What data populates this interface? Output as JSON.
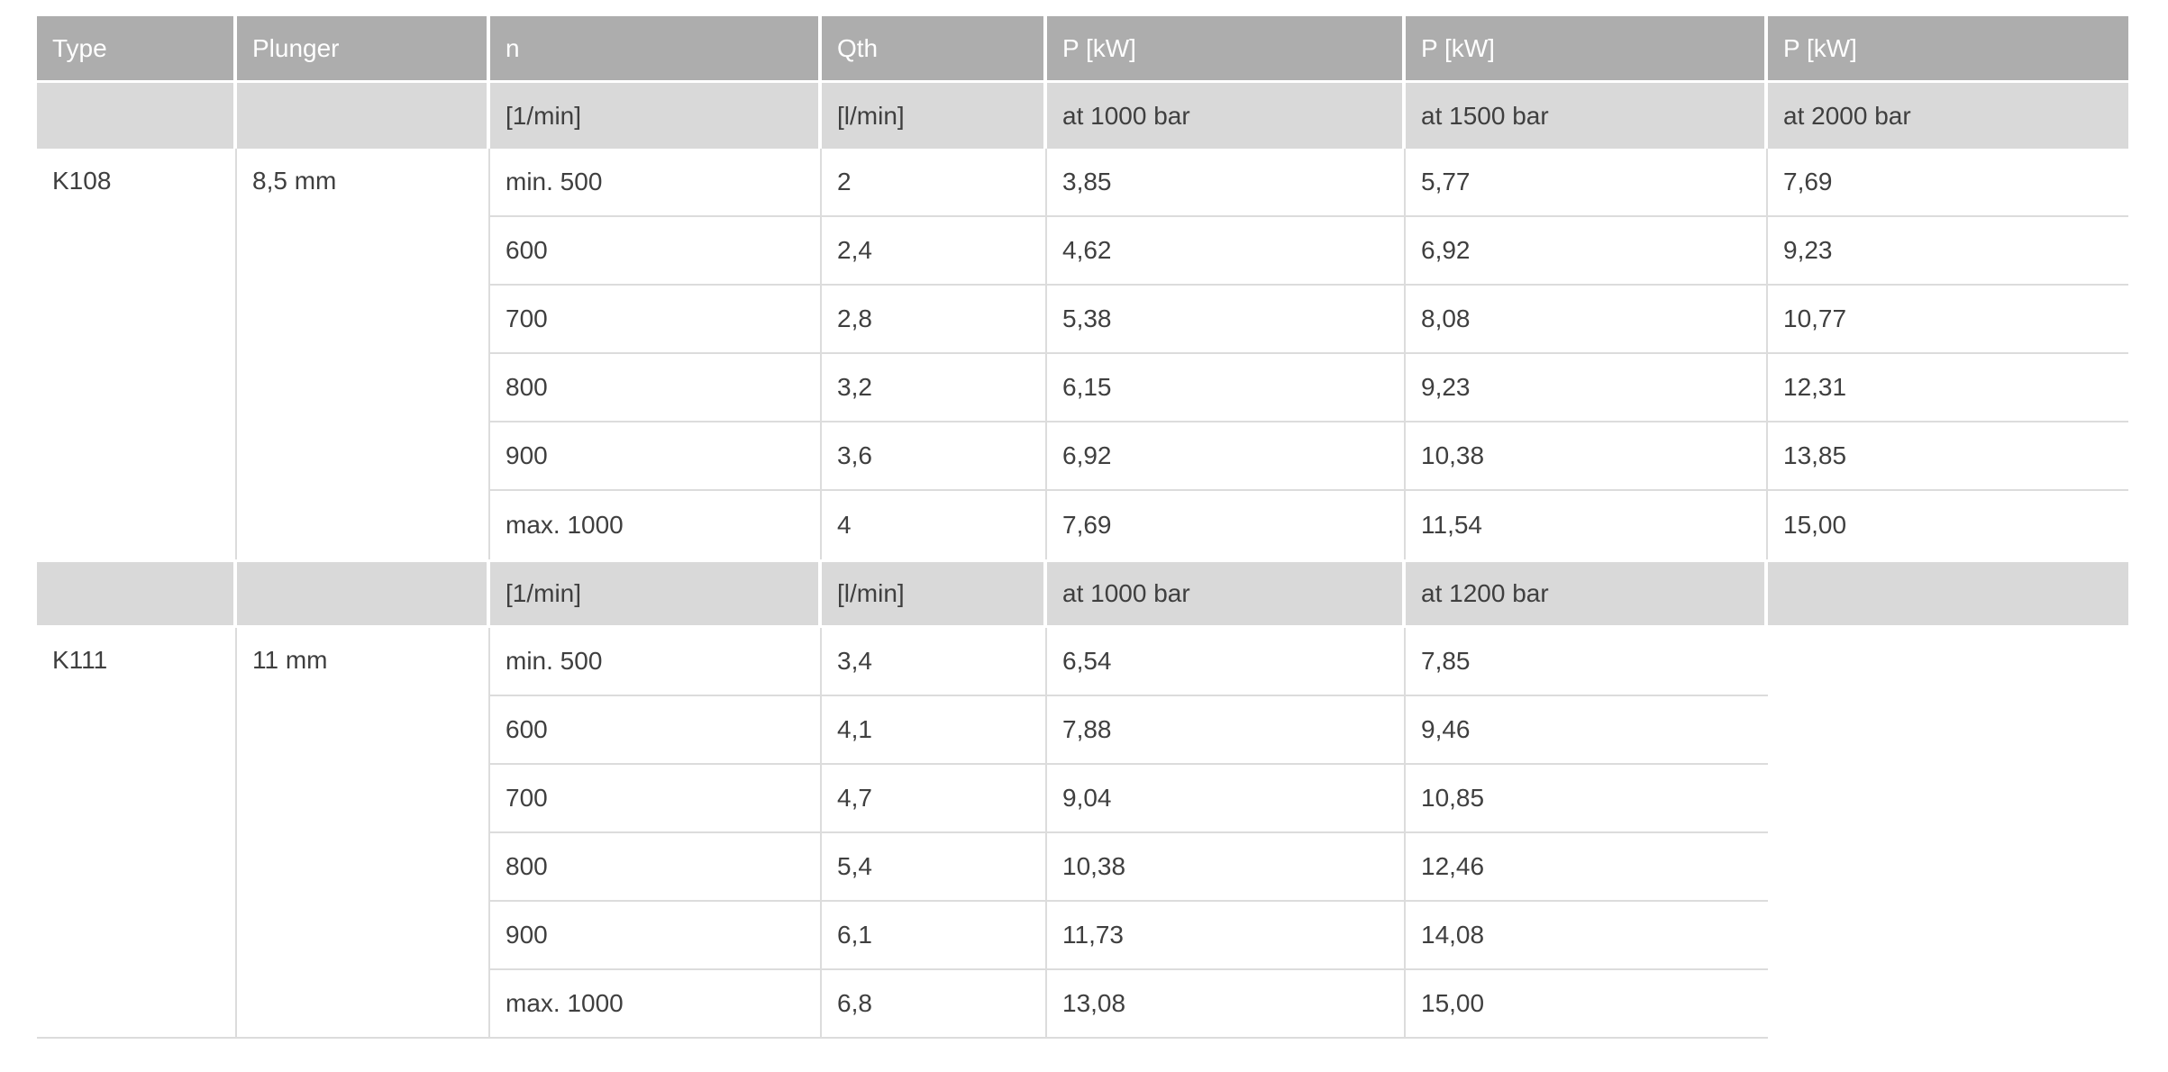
{
  "colors": {
    "header_bg": "#adadad",
    "header_text": "#ffffff",
    "subheader_bg": "#d9d9d9",
    "body_text": "#3f3f3f",
    "row_border": "#dcdcdc",
    "page_bg": "#ffffff"
  },
  "table": {
    "headers": [
      "Type",
      "Plunger",
      "n",
      "Qth",
      "P [kW]",
      "P [kW]",
      "P [kW]"
    ],
    "k108": {
      "type": "K108",
      "plunger": "8,5 mm",
      "units": [
        "[1/min]",
        "[l/min]",
        "at 1000 bar",
        "at 1500 bar",
        "at 2000 bar"
      ],
      "rows": [
        [
          "min. 500",
          "2",
          "3,85",
          "5,77",
          "7,69"
        ],
        [
          "600",
          "2,4",
          "4,62",
          "6,92",
          "9,23"
        ],
        [
          "700",
          "2,8",
          "5,38",
          "8,08",
          "10,77"
        ],
        [
          "800",
          "3,2",
          "6,15",
          "9,23",
          "12,31"
        ],
        [
          "900",
          "3,6",
          "6,92",
          "10,38",
          "13,85"
        ],
        [
          "max. 1000",
          "4",
          "7,69",
          "11,54",
          "15,00"
        ]
      ]
    },
    "k111": {
      "type": "K111",
      "plunger": "11 mm",
      "units": [
        "[1/min]",
        "[l/min]",
        "at 1000 bar",
        "at 1200 bar"
      ],
      "rows": [
        [
          "min. 500",
          "3,4",
          "6,54",
          "7,85"
        ],
        [
          "600",
          "4,1",
          "7,88",
          "9,46"
        ],
        [
          "700",
          "4,7",
          "9,04",
          "10,85"
        ],
        [
          "800",
          "5,4",
          "10,38",
          "12,46"
        ],
        [
          "900",
          "6,1",
          "11,73",
          "14,08"
        ],
        [
          "max. 1000",
          "6,8",
          "13,08",
          "15,00"
        ]
      ]
    }
  }
}
